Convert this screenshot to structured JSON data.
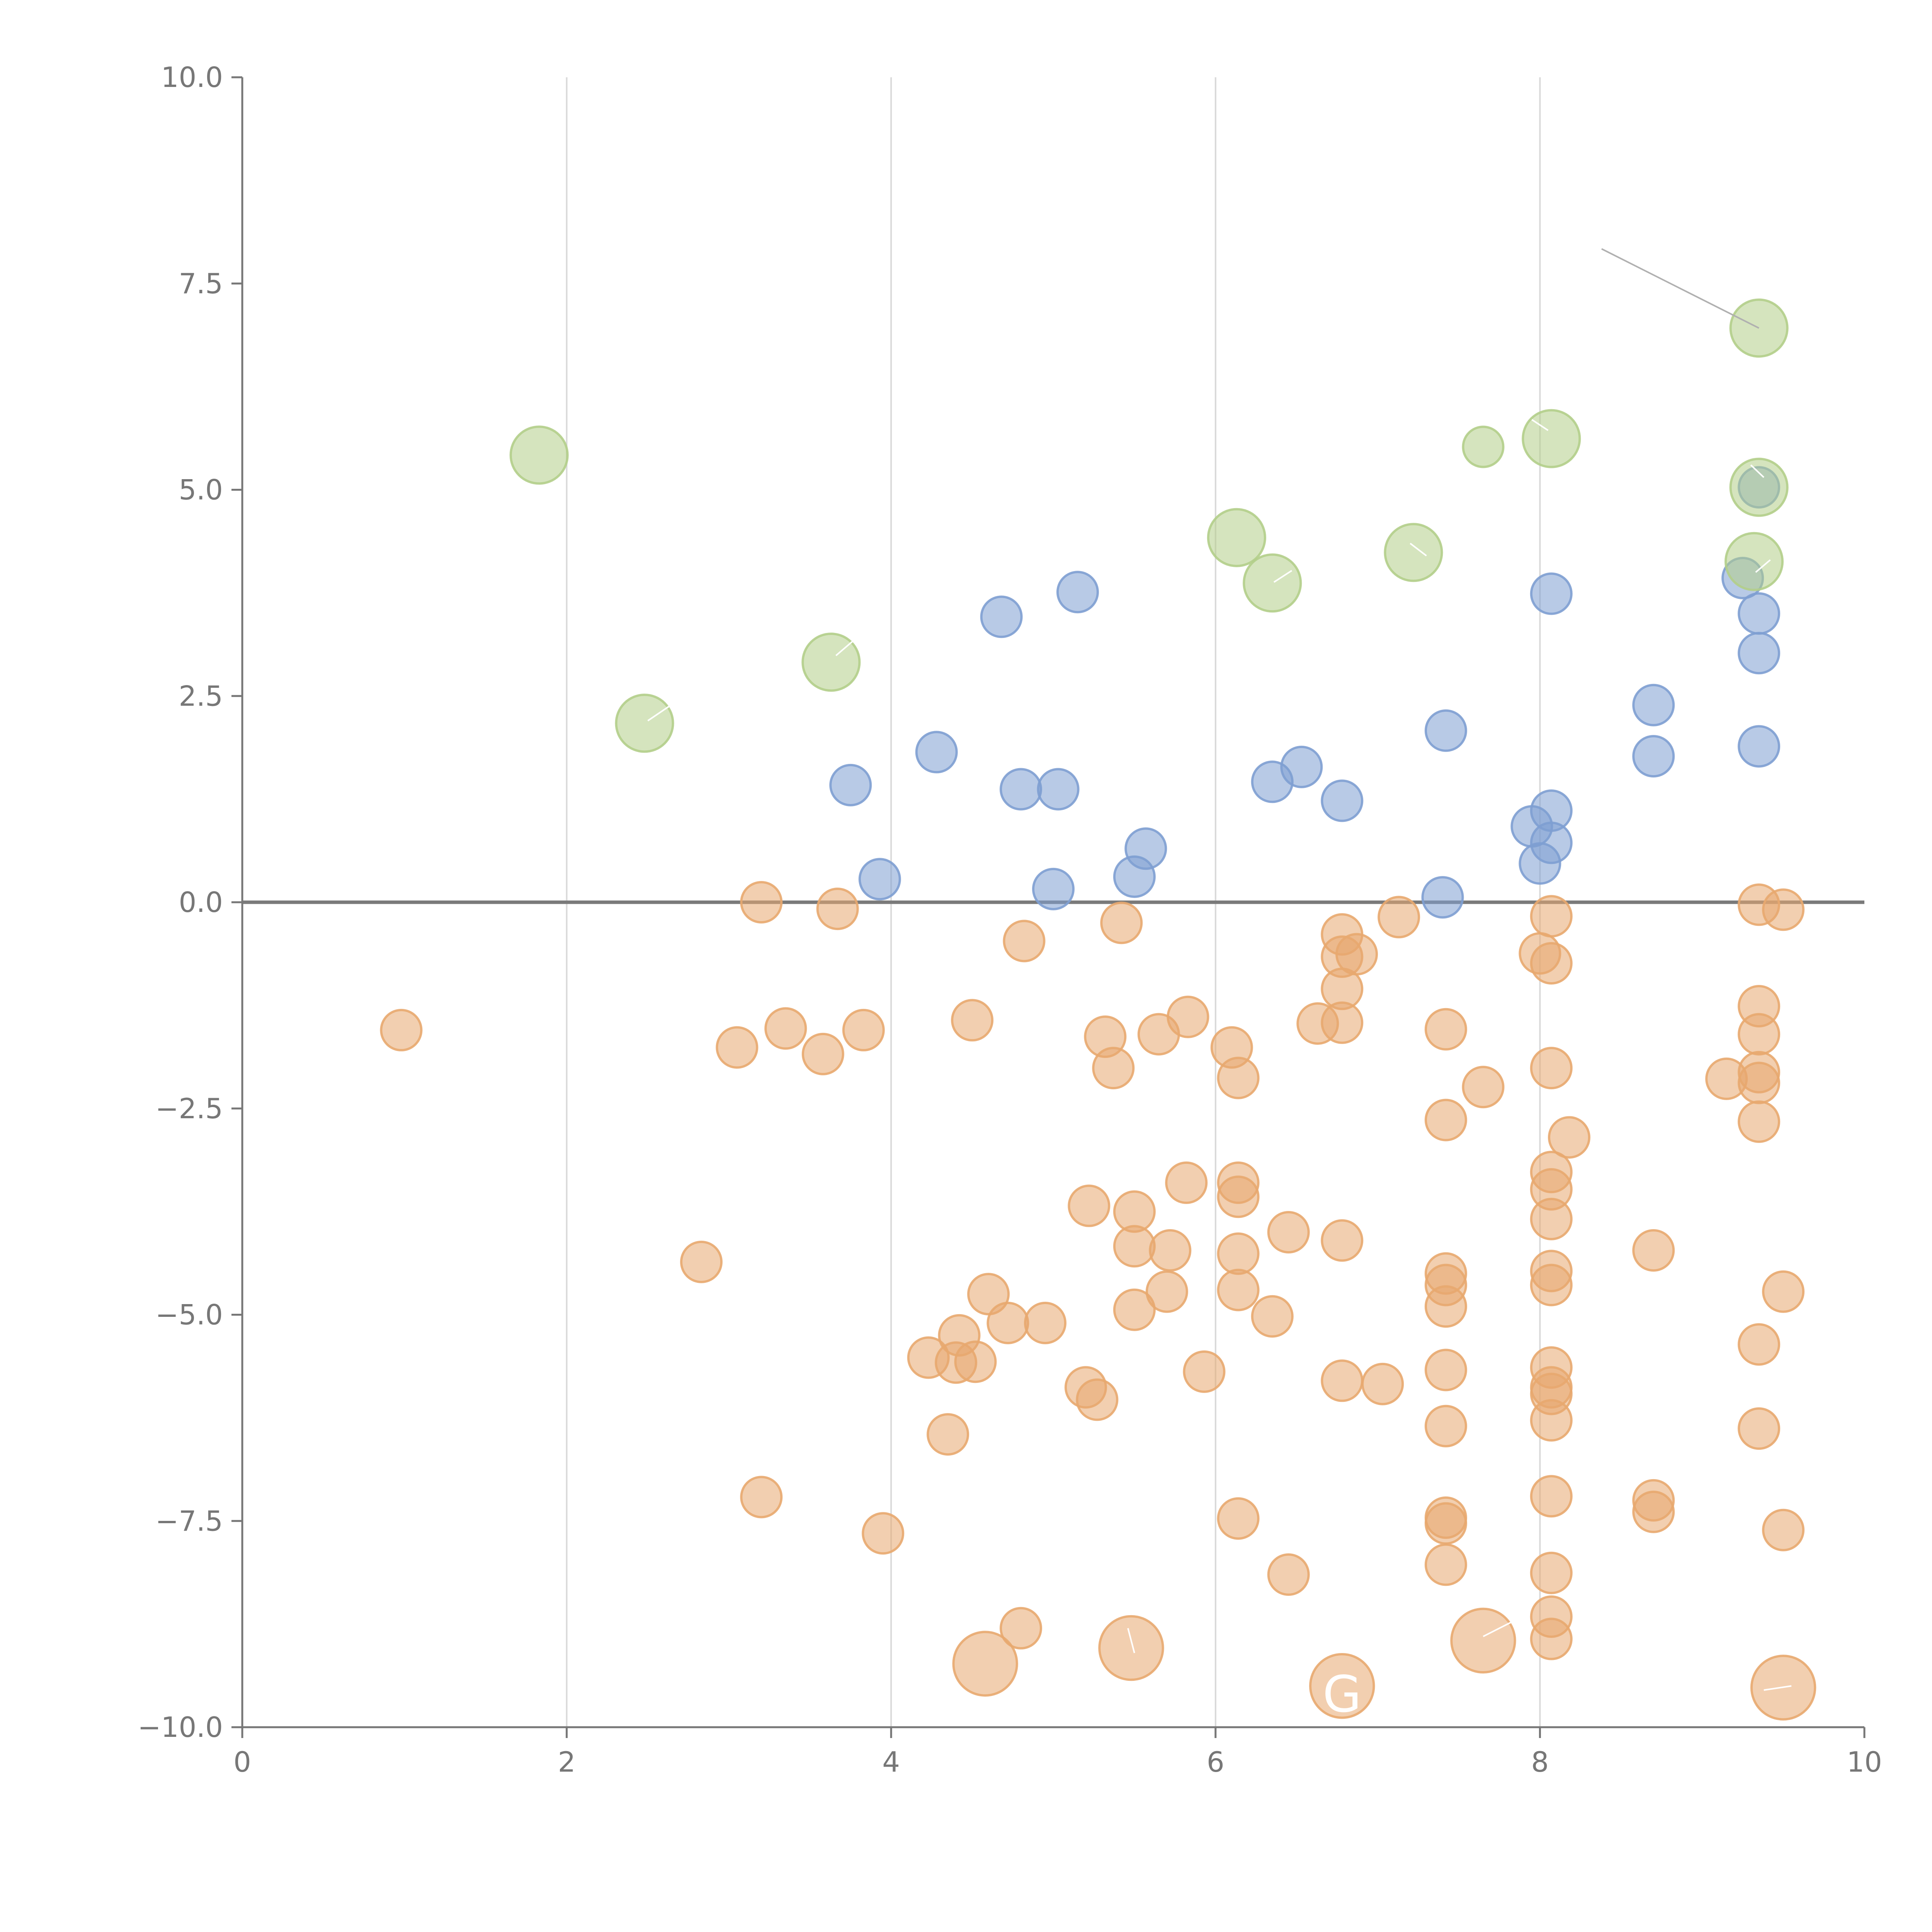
{
  "chart_data": {
    "type": "scatter",
    "title": "",
    "xlabel": "",
    "ylabel": "",
    "xlim": [
      0,
      10
    ],
    "ylim": [
      -10,
      10
    ],
    "grid": "vertical",
    "legend": "none",
    "zero_line": 0,
    "xticks": [
      "0",
      "2",
      "4",
      "6",
      "8",
      "10"
    ],
    "yticks": [
      "−10.0",
      "−7.5",
      "−5.0",
      "−2.5",
      "0.0",
      "2.5",
      "5.0",
      "7.5",
      "10.0"
    ],
    "colors": {
      "blue": "#7e9fd1",
      "orange": "#e8a86f",
      "green": "#b3ce89",
      "leader_grey": "#b0b0b0",
      "leader_white": "#ffffff"
    },
    "series": [
      {
        "name": "orange",
        "color": "#e8a86f",
        "points": [
          [
            0.98,
            -1.55,
            1
          ],
          [
            2.83,
            -4.36,
            1
          ],
          [
            3.05,
            -1.76,
            1
          ],
          [
            3.2,
            0.0,
            1
          ],
          [
            3.2,
            -7.21,
            1
          ],
          [
            3.35,
            -1.53,
            1
          ],
          [
            3.58,
            -1.84,
            1
          ],
          [
            3.67,
            -0.08,
            1
          ],
          [
            3.83,
            -1.55,
            1
          ],
          [
            3.95,
            -7.65,
            1
          ],
          [
            4.23,
            -5.52,
            1
          ],
          [
            4.35,
            -6.45,
            1
          ],
          [
            4.4,
            -5.58,
            1
          ],
          [
            4.42,
            -5.25,
            1
          ],
          [
            4.5,
            -1.43,
            1
          ],
          [
            4.52,
            -5.57,
            1
          ],
          [
            4.6,
            -4.75,
            1
          ],
          [
            4.72,
            -5.1,
            1
          ],
          [
            4.8,
            -8.8,
            1
          ],
          [
            4.82,
            -0.47,
            1
          ],
          [
            4.95,
            -5.1,
            1
          ],
          [
            5.2,
            -5.88,
            1
          ],
          [
            5.22,
            -3.68,
            1
          ],
          [
            5.27,
            -6.03,
            1
          ],
          [
            5.32,
            -1.63,
            1
          ],
          [
            5.37,
            -2.01,
            1
          ],
          [
            5.42,
            -0.25,
            1
          ],
          [
            5.5,
            -3.75,
            1
          ],
          [
            5.5,
            -4.94,
            1
          ],
          [
            5.5,
            -4.17,
            1
          ],
          [
            5.65,
            -1.6,
            1
          ],
          [
            5.7,
            -4.72,
            1
          ],
          [
            5.72,
            -4.22,
            1
          ],
          [
            5.82,
            -3.4,
            1
          ],
          [
            5.83,
            -1.39,
            1
          ],
          [
            5.93,
            -5.69,
            1
          ],
          [
            6.1,
            -1.76,
            1
          ],
          [
            6.14,
            -2.13,
            1
          ],
          [
            6.14,
            -3.4,
            1
          ],
          [
            6.14,
            -3.57,
            1
          ],
          [
            6.14,
            -4.26,
            1
          ],
          [
            6.14,
            -4.7,
            1
          ],
          [
            6.14,
            -7.47,
            1
          ],
          [
            6.35,
            -5.02,
            1
          ],
          [
            6.45,
            -8.15,
            1
          ],
          [
            6.45,
            -4.0,
            1
          ],
          [
            6.63,
            -1.47,
            1
          ],
          [
            6.78,
            -0.39,
            1
          ],
          [
            6.78,
            -0.66,
            1
          ],
          [
            6.78,
            -1.05,
            1
          ],
          [
            6.78,
            -1.46,
            1
          ],
          [
            6.78,
            -4.1,
            1
          ],
          [
            6.78,
            -5.8,
            1
          ],
          [
            6.87,
            -0.63,
            1
          ],
          [
            7.03,
            -5.84,
            1
          ],
          [
            7.13,
            -0.18,
            1
          ],
          [
            7.42,
            -1.54,
            1
          ],
          [
            7.42,
            -2.64,
            1
          ],
          [
            7.42,
            -4.5,
            1
          ],
          [
            7.42,
            -4.64,
            1
          ],
          [
            7.42,
            -4.9,
            1
          ],
          [
            7.42,
            -5.67,
            1
          ],
          [
            7.42,
            -6.35,
            1
          ],
          [
            7.42,
            -7.46,
            1
          ],
          [
            7.42,
            -7.53,
            1
          ],
          [
            7.42,
            -8.03,
            1
          ],
          [
            7.65,
            -2.24,
            1
          ],
          [
            8.0,
            -0.62,
            1
          ],
          [
            8.07,
            -0.17,
            1
          ],
          [
            8.07,
            -0.74,
            1
          ],
          [
            8.07,
            -2.01,
            1
          ],
          [
            8.07,
            -3.27,
            1
          ],
          [
            8.07,
            -3.48,
            1
          ],
          [
            8.07,
            -3.84,
            1
          ],
          [
            8.07,
            -4.47,
            1
          ],
          [
            8.07,
            -4.64,
            1
          ],
          [
            8.07,
            -5.64,
            1
          ],
          [
            8.07,
            -5.88,
            1
          ],
          [
            8.07,
            -5.96,
            1
          ],
          [
            8.07,
            -6.28,
            1
          ],
          [
            8.07,
            -7.2,
            1
          ],
          [
            8.07,
            -8.13,
            1
          ],
          [
            8.07,
            -8.66,
            1
          ],
          [
            8.07,
            -8.93,
            1
          ],
          [
            8.18,
            -2.85,
            1
          ],
          [
            8.7,
            -4.22,
            1
          ],
          [
            8.7,
            -7.25,
            1
          ],
          [
            8.7,
            -7.39,
            1
          ],
          [
            9.15,
            -2.14,
            1
          ],
          [
            9.35,
            -0.03,
            1
          ],
          [
            9.35,
            -1.26,
            1
          ],
          [
            9.35,
            -1.6,
            1
          ],
          [
            9.35,
            -2.06,
            1
          ],
          [
            9.35,
            -2.19,
            1
          ],
          [
            9.35,
            -2.66,
            1
          ],
          [
            9.35,
            -5.36,
            1
          ],
          [
            9.35,
            -6.38,
            1
          ],
          [
            9.5,
            -0.09,
            1
          ],
          [
            9.5,
            -4.72,
            1
          ],
          [
            9.5,
            -7.61,
            1
          ],
          [
            4.58,
            -9.23,
            2.5
          ],
          [
            5.48,
            -9.04,
            2.5
          ],
          [
            6.78,
            -9.5,
            2.5
          ],
          [
            7.65,
            -8.95,
            2.5
          ],
          [
            9.5,
            -9.52,
            2.5
          ]
        ]
      },
      {
        "name": "blue",
        "color": "#7e9fd1",
        "points": [
          [
            3.75,
            1.42,
            1
          ],
          [
            3.93,
            0.28,
            1
          ],
          [
            4.28,
            1.82,
            1
          ],
          [
            4.68,
            3.46,
            1
          ],
          [
            4.8,
            1.37,
            1
          ],
          [
            5.0,
            0.16,
            1
          ],
          [
            5.03,
            1.37,
            1
          ],
          [
            5.15,
            3.76,
            1
          ],
          [
            5.5,
            0.31,
            1
          ],
          [
            5.57,
            0.65,
            1
          ],
          [
            6.35,
            1.46,
            1
          ],
          [
            6.53,
            1.64,
            1
          ],
          [
            6.78,
            1.23,
            1
          ],
          [
            7.4,
            0.06,
            1
          ],
          [
            7.42,
            2.08,
            1
          ],
          [
            7.95,
            0.92,
            1
          ],
          [
            8.0,
            0.47,
            1
          ],
          [
            8.07,
            0.72,
            1
          ],
          [
            8.07,
            1.11,
            1
          ],
          [
            8.07,
            3.74,
            1
          ],
          [
            8.7,
            2.39,
            1
          ],
          [
            8.7,
            1.77,
            1
          ],
          [
            9.25,
            3.93,
            1
          ],
          [
            9.35,
            3.5,
            1
          ],
          [
            9.35,
            3.02,
            1
          ],
          [
            9.35,
            1.89,
            1
          ],
          [
            9.35,
            5.03,
            1
          ]
        ]
      },
      {
        "name": "green",
        "color": "#b3ce89",
        "points": [
          [
            1.83,
            5.42,
            2
          ],
          [
            2.48,
            2.17,
            2
          ],
          [
            3.63,
            2.91,
            2
          ],
          [
            6.13,
            4.42,
            2
          ],
          [
            6.35,
            3.87,
            2
          ],
          [
            7.22,
            4.24,
            2
          ],
          [
            7.65,
            5.52,
            1
          ],
          [
            8.07,
            5.62,
            2
          ],
          [
            9.32,
            4.13,
            2
          ],
          [
            9.35,
            5.03,
            2
          ],
          [
            9.35,
            6.96,
            2
          ]
        ]
      }
    ],
    "leader_lines": [
      {
        "x1": 8.38,
        "y1": 7.92,
        "x2": 9.35,
        "y2": 6.96,
        "color": "grey"
      },
      {
        "x1": 2.5,
        "y1": 2.2,
        "x2": 2.68,
        "y2": 2.44,
        "color": "white"
      },
      {
        "x1": 3.66,
        "y1": 2.99,
        "x2": 3.82,
        "y2": 3.26,
        "color": "white"
      },
      {
        "x1": 6.36,
        "y1": 3.88,
        "x2": 6.47,
        "y2": 4.02,
        "color": "white"
      },
      {
        "x1": 7.2,
        "y1": 4.35,
        "x2": 7.3,
        "y2": 4.2,
        "color": "white"
      },
      {
        "x1": 8.05,
        "y1": 5.72,
        "x2": 7.95,
        "y2": 5.85,
        "color": "white"
      },
      {
        "x1": 9.3,
        "y1": 5.3,
        "x2": 9.38,
        "y2": 5.15,
        "color": "white"
      },
      {
        "x1": 9.33,
        "y1": 4.0,
        "x2": 9.42,
        "y2": 4.15,
        "color": "white"
      },
      {
        "x1": 5.46,
        "y1": -8.8,
        "x2": 5.5,
        "y2": -9.1,
        "color": "white"
      },
      {
        "x1": 7.65,
        "y1": -8.9,
        "x2": 7.85,
        "y2": -8.7,
        "color": "white"
      },
      {
        "x1": 9.38,
        "y1": -9.55,
        "x2": 9.55,
        "y2": -9.5,
        "color": "white"
      }
    ],
    "annotations": [
      {
        "text": "G",
        "x": 6.78,
        "y": -9.6
      }
    ]
  }
}
